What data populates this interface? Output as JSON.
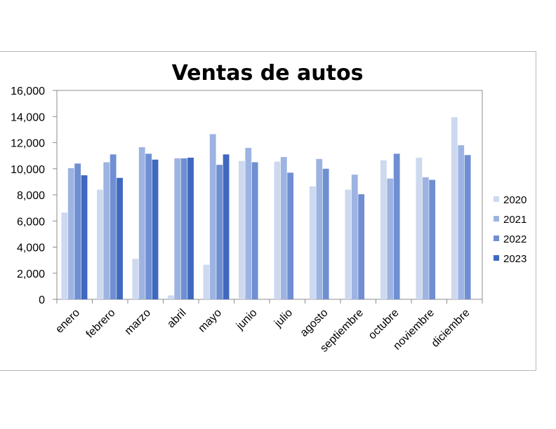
{
  "chart_data": {
    "type": "bar",
    "title": "Ventas de autos",
    "xlabel": "",
    "ylabel": "",
    "ylim": [
      0,
      16000
    ],
    "yticks": [
      "0",
      "2,000",
      "4,000",
      "6,000",
      "8,000",
      "10,000",
      "12,000",
      "14,000",
      "16,000"
    ],
    "categories": [
      "enero",
      "febrero",
      "marzo",
      "abril",
      "mayo",
      "junio",
      "julio",
      "agosto",
      "septiembre",
      "octubre",
      "noviembre",
      "diciembre"
    ],
    "series": [
      {
        "name": "2020",
        "color": "#cdd9ef",
        "values": [
          6650,
          8400,
          3100,
          300,
          2650,
          10600,
          10550,
          8650,
          8400,
          10650,
          10850,
          13950
        ]
      },
      {
        "name": "2021",
        "color": "#9db3e2",
        "values": [
          10050,
          10500,
          11650,
          10800,
          12650,
          11600,
          10900,
          10750,
          9550,
          9250,
          9350,
          11800
        ]
      },
      {
        "name": "2022",
        "color": "#6f8fd2",
        "values": [
          10400,
          11100,
          11150,
          10800,
          10300,
          10500,
          9700,
          10000,
          8050,
          11150,
          9150,
          11050
        ]
      },
      {
        "name": "2023",
        "color": "#3f68bf",
        "values": [
          9500,
          9300,
          10700,
          10850,
          11100,
          null,
          null,
          null,
          null,
          null,
          null,
          null
        ]
      }
    ],
    "grid": false,
    "legend": "right"
  }
}
